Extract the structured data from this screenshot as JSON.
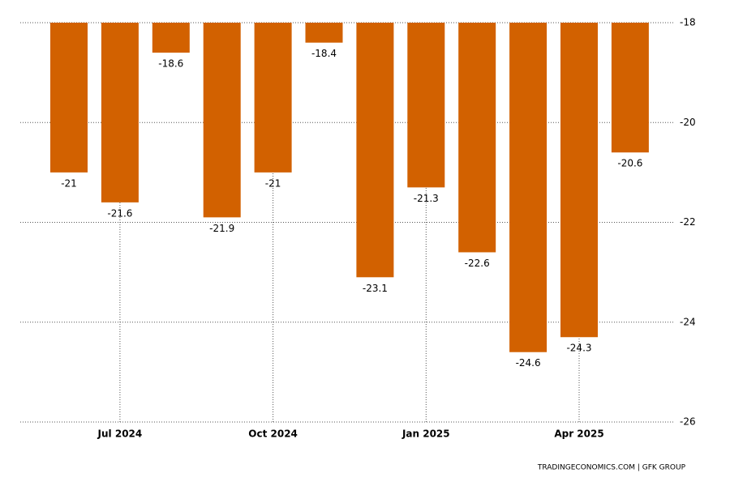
{
  "chart_data": {
    "type": "bar",
    "categories": [
      null,
      "Jul 2024",
      null,
      null,
      "Oct 2024",
      null,
      null,
      "Jan 2025",
      null,
      null,
      "Apr 2025",
      null
    ],
    "values": [
      -21,
      -21.6,
      -18.6,
      -21.9,
      -21,
      -18.4,
      -23.1,
      -21.3,
      -22.6,
      -24.6,
      -24.3,
      -20.6
    ],
    "color": "#d26100",
    "ylim": [
      -26,
      -18
    ],
    "yticks": [
      -18,
      -20,
      -22,
      -24,
      -26
    ],
    "grid": true,
    "source": "TRADINGECONOMICS.COM | GFK GROUP"
  }
}
